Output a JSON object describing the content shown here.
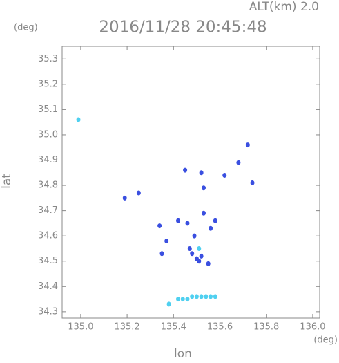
{
  "chart_data": {
    "type": "scatter",
    "title": "2016/11/28 20:45:48",
    "subtitle": "ALT(km) 2.0",
    "y_unit": "(deg)",
    "x_unit": "(deg)",
    "x_label": "lon",
    "y_label": "lat",
    "xlim": [
      134.92,
      136.03
    ],
    "ylim": [
      34.275,
      35.35
    ],
    "xticks": [
      {
        "value": 135,
        "label": "135.0"
      },
      135.2,
      135.4,
      135.6,
      135.8,
      {
        "value": 136,
        "label": "136.0"
      }
    ],
    "yticks": [
      34.3,
      34.4,
      34.5,
      34.6,
      34.7,
      34.8,
      34.9,
      {
        "value": 35,
        "label": "35.0"
      },
      35.1,
      35.2,
      35.3
    ],
    "series": [
      {
        "color": "#3a4fe0",
        "x": [
          135.19,
          135.25,
          135.34,
          135.35,
          135.42,
          135.45,
          135.52,
          135.53,
          135.62,
          135.68,
          135.72,
          135.74,
          135.46,
          135.49,
          135.47,
          135.5,
          135.52,
          135.55,
          135.53,
          135.56,
          135.58,
          135.37,
          135.48,
          135.51
        ],
        "y": [
          34.75,
          34.77,
          34.64,
          34.53,
          34.66,
          34.86,
          34.85,
          34.79,
          34.84,
          34.89,
          34.96,
          34.81,
          34.65,
          34.6,
          34.55,
          34.51,
          34.52,
          34.49,
          34.69,
          34.63,
          34.66,
          34.58,
          34.53,
          34.5
        ]
      },
      {
        "color": "#4fd0f0",
        "x": [
          134.99,
          135.51,
          135.38,
          135.42,
          135.44,
          135.46,
          135.48,
          135.5,
          135.52,
          135.54,
          135.56,
          135.58
        ],
        "y": [
          35.06,
          34.55,
          34.33,
          34.35,
          34.35,
          34.35,
          34.36,
          34.36,
          34.36,
          34.36,
          34.36,
          34.36
        ]
      }
    ]
  }
}
